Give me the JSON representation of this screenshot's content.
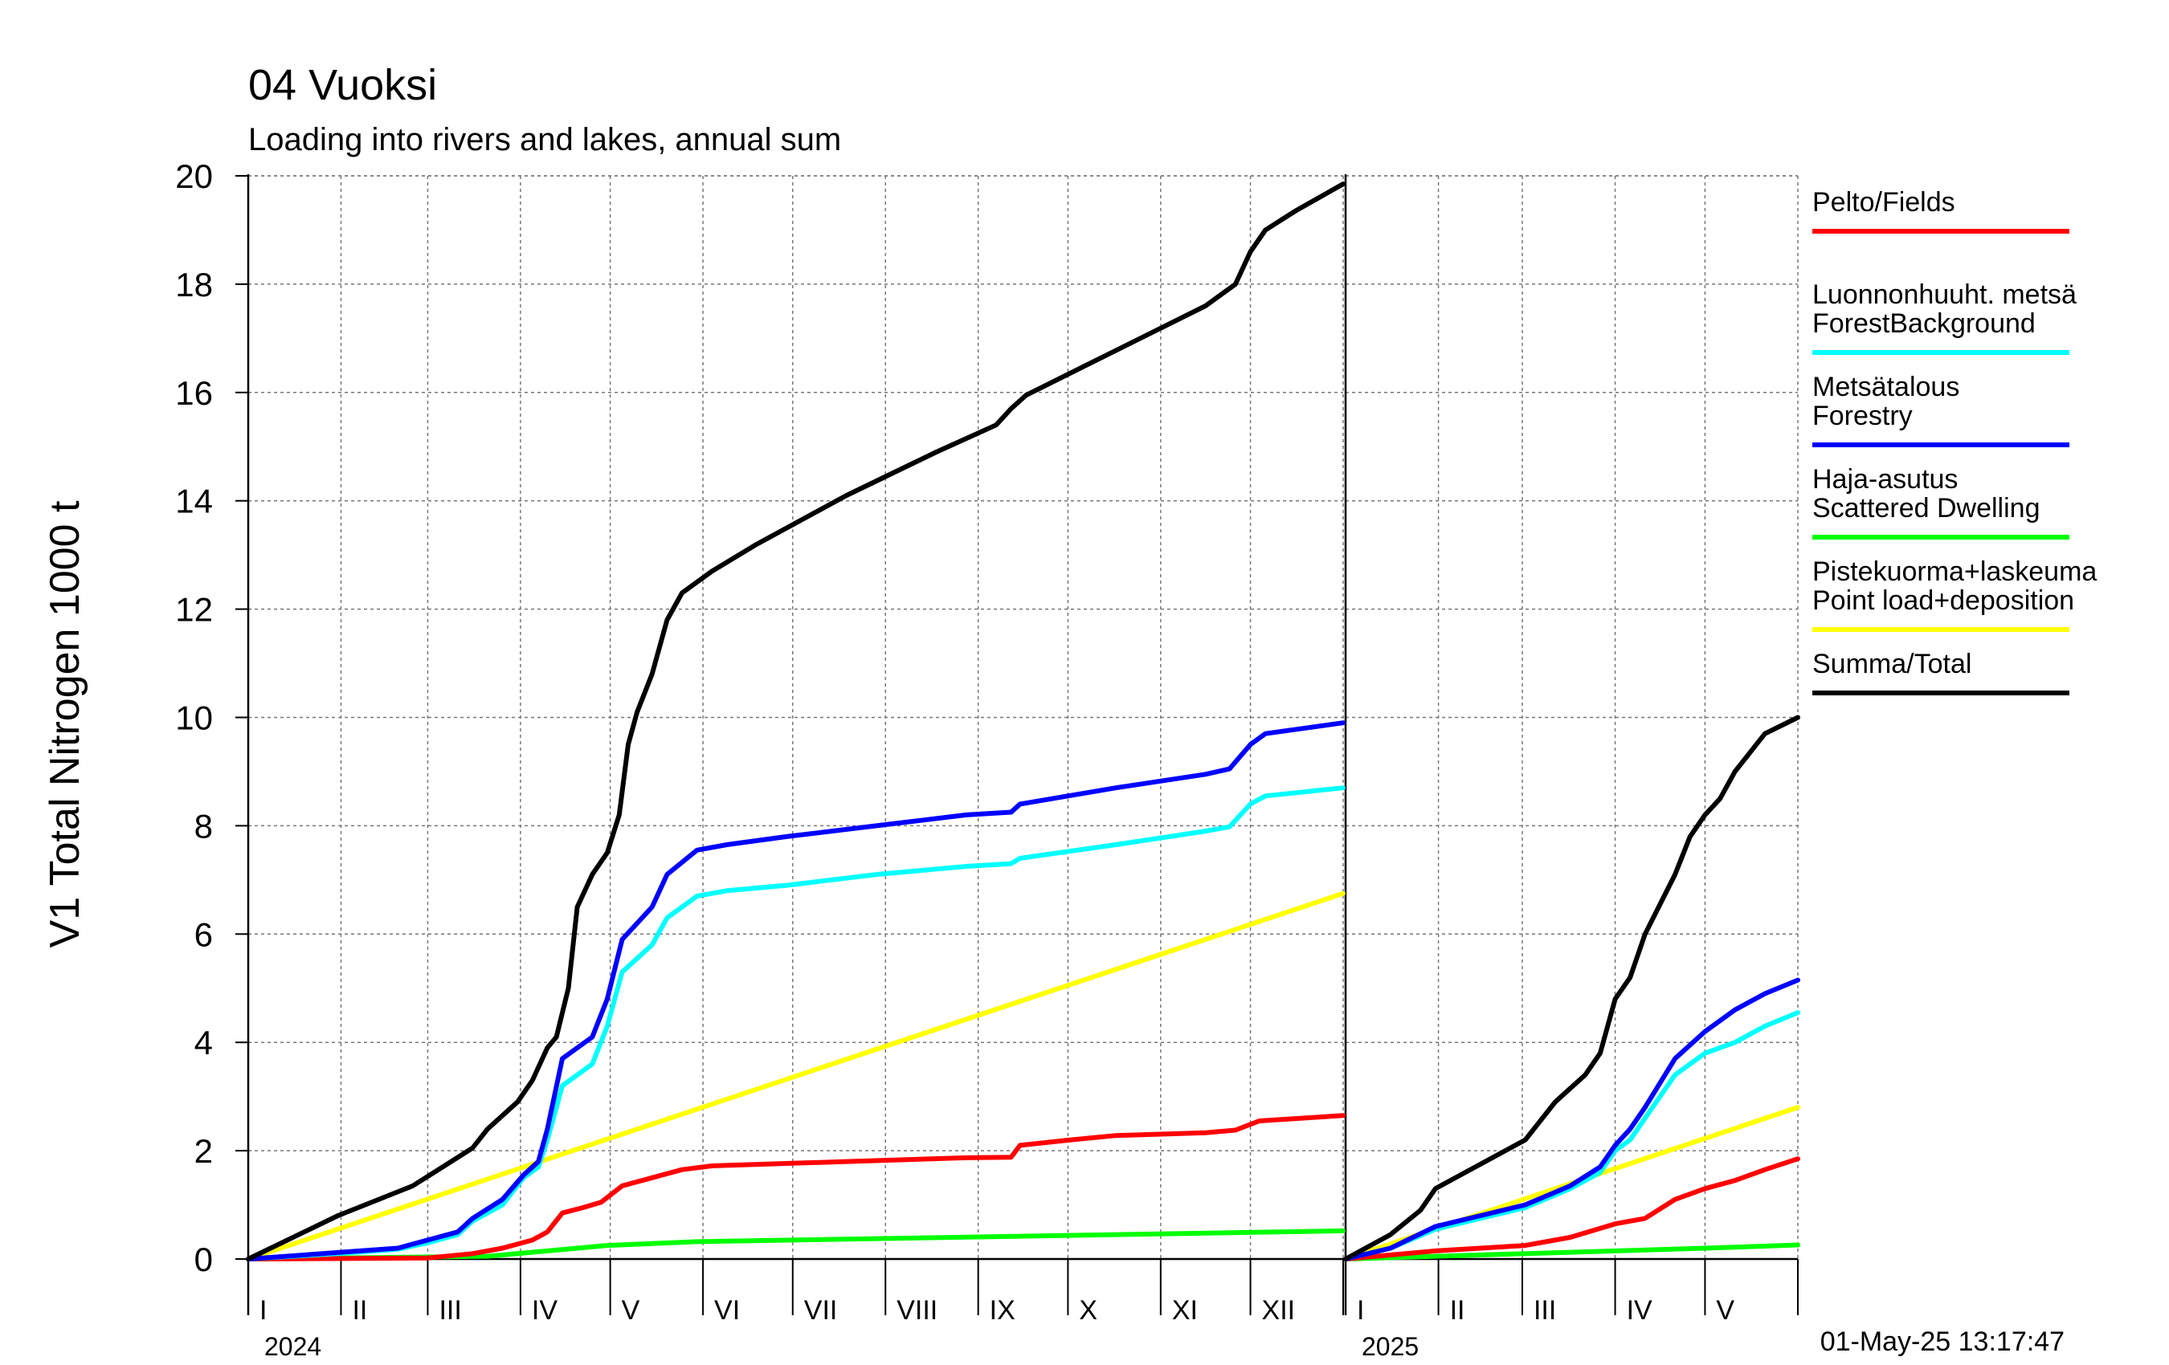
{
  "chart_data": {
    "type": "line",
    "title": "04 Vuoksi",
    "subtitle": "Loading into rivers and lakes, annual sum",
    "ylabel": "V1 Total Nitrogen 1000 t",
    "xlabel": "",
    "ylim": [
      0,
      20
    ],
    "yticks": [
      0,
      2,
      4,
      6,
      8,
      10,
      12,
      14,
      16,
      18,
      20
    ],
    "grid": true,
    "legend_position": "right",
    "timestamp": "01-May-25 13:17:47",
    "x_unit": "day of year",
    "panels": [
      {
        "year_label": "2024",
        "xlim": [
          0,
          366
        ],
        "months": [
          "I",
          "II",
          "III",
          "IV",
          "V",
          "VI",
          "VII",
          "VIII",
          "IX",
          "X",
          "XI",
          "XII"
        ],
        "month_starts": [
          0,
          31,
          60,
          91,
          121,
          152,
          182,
          213,
          244,
          274,
          305,
          335,
          366
        ],
        "series": [
          {
            "key": "pelto",
            "points": [
              [
                0,
                0
              ],
              [
                60,
                0.02
              ],
              [
                75,
                0.1
              ],
              [
                85,
                0.2
              ],
              [
                95,
                0.35
              ],
              [
                100,
                0.5
              ],
              [
                105,
                0.85
              ],
              [
                112,
                0.95
              ],
              [
                118,
                1.05
              ],
              [
                125,
                1.35
              ],
              [
                135,
                1.5
              ],
              [
                145,
                1.65
              ],
              [
                155,
                1.72
              ],
              [
                200,
                1.8
              ],
              [
                240,
                1.87
              ],
              [
                255,
                1.88
              ],
              [
                258,
                2.1
              ],
              [
                275,
                2.2
              ],
              [
                290,
                2.28
              ],
              [
                320,
                2.33
              ],
              [
                330,
                2.38
              ],
              [
                338,
                2.55
              ],
              [
                366,
                2.65
              ]
            ]
          },
          {
            "key": "forest_bg",
            "points": [
              [
                0,
                0
              ],
              [
                30,
                0.1
              ],
              [
                50,
                0.18
              ],
              [
                60,
                0.3
              ],
              [
                70,
                0.45
              ],
              [
                75,
                0.7
              ],
              [
                85,
                1.0
              ],
              [
                92,
                1.5
              ],
              [
                97,
                1.7
              ],
              [
                100,
                2.2
              ],
              [
                105,
                3.2
              ],
              [
                115,
                3.6
              ],
              [
                120,
                4.3
              ],
              [
                125,
                5.3
              ],
              [
                135,
                5.8
              ],
              [
                140,
                6.3
              ],
              [
                150,
                6.7
              ],
              [
                160,
                6.8
              ],
              [
                180,
                6.9
              ],
              [
                210,
                7.1
              ],
              [
                240,
                7.25
              ],
              [
                255,
                7.3
              ],
              [
                258,
                7.4
              ],
              [
                290,
                7.65
              ],
              [
                320,
                7.9
              ],
              [
                328,
                7.98
              ],
              [
                335,
                8.4
              ],
              [
                340,
                8.55
              ],
              [
                366,
                8.7
              ]
            ]
          },
          {
            "key": "forestry",
            "points": [
              [
                0,
                0
              ],
              [
                30,
                0.12
              ],
              [
                50,
                0.2
              ],
              [
                60,
                0.35
              ],
              [
                70,
                0.5
              ],
              [
                75,
                0.75
              ],
              [
                85,
                1.1
              ],
              [
                92,
                1.55
              ],
              [
                97,
                1.8
              ],
              [
                100,
                2.4
              ],
              [
                105,
                3.7
              ],
              [
                115,
                4.1
              ],
              [
                120,
                4.8
              ],
              [
                125,
                5.9
              ],
              [
                135,
                6.5
              ],
              [
                140,
                7.1
              ],
              [
                150,
                7.55
              ],
              [
                160,
                7.65
              ],
              [
                180,
                7.8
              ],
              [
                210,
                8.0
              ],
              [
                240,
                8.2
              ],
              [
                255,
                8.25
              ],
              [
                258,
                8.4
              ],
              [
                290,
                8.7
              ],
              [
                320,
                8.95
              ],
              [
                328,
                9.05
              ],
              [
                335,
                9.5
              ],
              [
                340,
                9.7
              ],
              [
                366,
                9.9
              ]
            ]
          },
          {
            "key": "dwelling",
            "points": [
              [
                0,
                0
              ],
              [
                80,
                0.05
              ],
              [
                100,
                0.15
              ],
              [
                120,
                0.25
              ],
              [
                150,
                0.32
              ],
              [
                366,
                0.52
              ]
            ]
          },
          {
            "key": "point",
            "points": [
              [
                0,
                0
              ],
              [
                366,
                6.75
              ]
            ]
          },
          {
            "key": "total",
            "points": [
              [
                0,
                0
              ],
              [
                30,
                0.8
              ],
              [
                55,
                1.35
              ],
              [
                65,
                1.7
              ],
              [
                75,
                2.05
              ],
              [
                80,
                2.4
              ],
              [
                90,
                2.9
              ],
              [
                95,
                3.3
              ],
              [
                100,
                3.9
              ],
              [
                103,
                4.1
              ],
              [
                107,
                5.0
              ],
              [
                110,
                6.5
              ],
              [
                115,
                7.1
              ],
              [
                120,
                7.5
              ],
              [
                124,
                8.2
              ],
              [
                127,
                9.5
              ],
              [
                130,
                10.1
              ],
              [
                135,
                10.8
              ],
              [
                140,
                11.8
              ],
              [
                145,
                12.3
              ],
              [
                155,
                12.7
              ],
              [
                170,
                13.2
              ],
              [
                200,
                14.1
              ],
              [
                230,
                14.9
              ],
              [
                250,
                15.4
              ],
              [
                255,
                15.7
              ],
              [
                260,
                15.95
              ],
              [
                280,
                16.5
              ],
              [
                300,
                17.05
              ],
              [
                320,
                17.6
              ],
              [
                330,
                18.0
              ],
              [
                335,
                18.6
              ],
              [
                340,
                19.0
              ],
              [
                350,
                19.35
              ],
              [
                366,
                19.85
              ]
            ]
          }
        ]
      },
      {
        "year_label": "2025",
        "xlim": [
          0,
          151
        ],
        "months": [
          "I",
          "II",
          "III",
          "IV",
          "V"
        ],
        "month_starts": [
          0,
          31,
          59,
          90,
          120,
          151
        ],
        "series": [
          {
            "key": "pelto",
            "points": [
              [
                0,
                0
              ],
              [
                30,
                0.15
              ],
              [
                60,
                0.25
              ],
              [
                75,
                0.4
              ],
              [
                90,
                0.65
              ],
              [
                100,
                0.75
              ],
              [
                110,
                1.1
              ],
              [
                120,
                1.3
              ],
              [
                130,
                1.45
              ],
              [
                140,
                1.65
              ],
              [
                151,
                1.85
              ]
            ]
          },
          {
            "key": "forest_bg",
            "points": [
              [
                0,
                0
              ],
              [
                15,
                0.2
              ],
              [
                30,
                0.55
              ],
              [
                60,
                0.95
              ],
              [
                75,
                1.3
              ],
              [
                85,
                1.6
              ],
              [
                90,
                2.0
              ],
              [
                95,
                2.2
              ],
              [
                100,
                2.6
              ],
              [
                110,
                3.4
              ],
              [
                120,
                3.8
              ],
              [
                130,
                4.0
              ],
              [
                140,
                4.3
              ],
              [
                151,
                4.55
              ]
            ]
          },
          {
            "key": "forestry",
            "points": [
              [
                0,
                0
              ],
              [
                15,
                0.2
              ],
              [
                30,
                0.6
              ],
              [
                60,
                1.0
              ],
              [
                75,
                1.35
              ],
              [
                85,
                1.7
              ],
              [
                90,
                2.1
              ],
              [
                95,
                2.4
              ],
              [
                100,
                2.8
              ],
              [
                110,
                3.7
              ],
              [
                120,
                4.2
              ],
              [
                130,
                4.6
              ],
              [
                140,
                4.9
              ],
              [
                151,
                5.15
              ]
            ]
          },
          {
            "key": "dwelling",
            "points": [
              [
                0,
                0
              ],
              [
                60,
                0.1
              ],
              [
                120,
                0.2
              ],
              [
                151,
                0.26
              ]
            ]
          },
          {
            "key": "point",
            "points": [
              [
                0,
                0
              ],
              [
                151,
                2.8
              ]
            ]
          },
          {
            "key": "total",
            "points": [
              [
                0,
                0
              ],
              [
                15,
                0.45
              ],
              [
                25,
                0.9
              ],
              [
                30,
                1.3
              ],
              [
                60,
                2.2
              ],
              [
                70,
                2.9
              ],
              [
                80,
                3.4
              ],
              [
                85,
                3.8
              ],
              [
                90,
                4.8
              ],
              [
                95,
                5.2
              ],
              [
                100,
                6.0
              ],
              [
                110,
                7.1
              ],
              [
                115,
                7.8
              ],
              [
                120,
                8.2
              ],
              [
                125,
                8.5
              ],
              [
                130,
                9.0
              ],
              [
                140,
                9.7
              ],
              [
                151,
                10.0
              ]
            ]
          }
        ]
      }
    ],
    "legend": [
      {
        "key": "pelto",
        "line1": "Pelto/Fields",
        "line2": "",
        "color": "#ff0000"
      },
      {
        "key": "forest_bg",
        "line1": "Luonnonhuuht. metsä",
        "line2": "ForestBackground",
        "color": "#00ffff"
      },
      {
        "key": "forestry",
        "line1": "Metsätalous",
        "line2": "Forestry",
        "color": "#0000ff"
      },
      {
        "key": "dwelling",
        "line1": "Haja-asutus",
        "line2": "Scattered Dwelling",
        "color": "#00ff00"
      },
      {
        "key": "point",
        "line1": "Pistekuorma+laskeuma",
        "line2": "Point load+deposition",
        "color": "#ffff00"
      },
      {
        "key": "total",
        "line1": "Summa/Total",
        "line2": "",
        "color": "#000000"
      }
    ]
  }
}
